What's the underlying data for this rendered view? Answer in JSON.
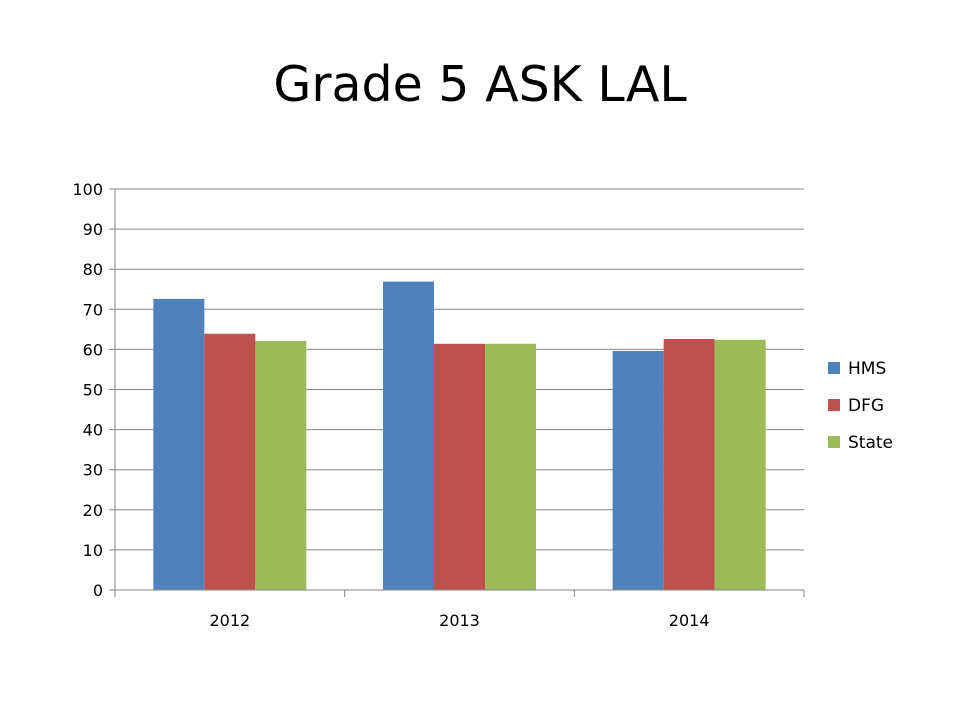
{
  "chart_data": {
    "type": "bar",
    "title": "Grade 5 ASK LAL",
    "categories": [
      "2012",
      "2013",
      "2014"
    ],
    "series": [
      {
        "name": "HMS",
        "values": [
          72.6,
          76.9,
          59.6
        ],
        "color": "#4F81BD"
      },
      {
        "name": "DFG",
        "values": [
          63.9,
          61.4,
          62.6
        ],
        "color": "#C0504D"
      },
      {
        "name": "State",
        "values": [
          62.1,
          61.4,
          62.4
        ],
        "color": "#9BBB59"
      }
    ],
    "xlabel": "",
    "ylabel": "",
    "ylim": [
      0,
      100
    ],
    "yticks": [
      0,
      10,
      20,
      30,
      40,
      50,
      60,
      70,
      80,
      90,
      100
    ],
    "grid": true,
    "legend_position": "right"
  }
}
